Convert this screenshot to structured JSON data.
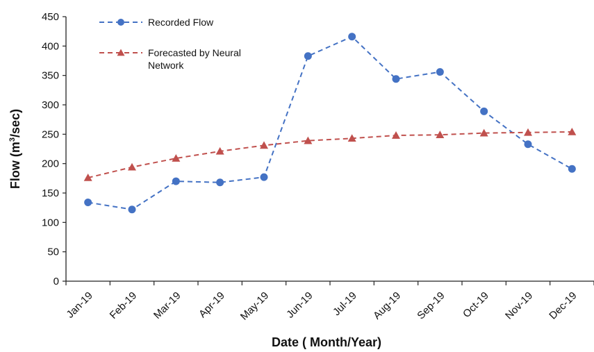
{
  "chart_data": {
    "type": "line",
    "title": "",
    "xlabel": "Date ( Month/Year)",
    "ylabel_main": "Flow (m",
    "ylabel_sup": "3",
    "ylabel_tail": "/sec)",
    "categories": [
      "Jan-19",
      "Feb-19",
      "Mar-19",
      "Apr-19",
      "May-19",
      "Jun-19",
      "Jul-19",
      "Aug-19",
      "Sep-19",
      "Oct-19",
      "Nov-19",
      "Dec-19"
    ],
    "ylim": [
      0,
      450
    ],
    "yticks": [
      0,
      50,
      100,
      150,
      200,
      250,
      300,
      350,
      400,
      450
    ],
    "grid": false,
    "legend_position": "top-left",
    "series": [
      {
        "name": "Recorded Flow",
        "color": "#4472C4",
        "marker": "circle",
        "line_style": "dashed",
        "values": [
          134,
          122,
          170,
          168,
          177,
          383,
          416,
          344,
          356,
          289,
          233,
          191
        ]
      },
      {
        "name": "Forecasted by Neural Network",
        "name_lines": [
          "Forecasted by Neural",
          "Network"
        ],
        "color": "#C0504D",
        "marker": "triangle",
        "line_style": "dashed",
        "values": [
          176,
          194,
          209,
          221,
          231,
          239,
          243,
          248,
          249,
          252,
          253,
          254
        ]
      }
    ]
  }
}
